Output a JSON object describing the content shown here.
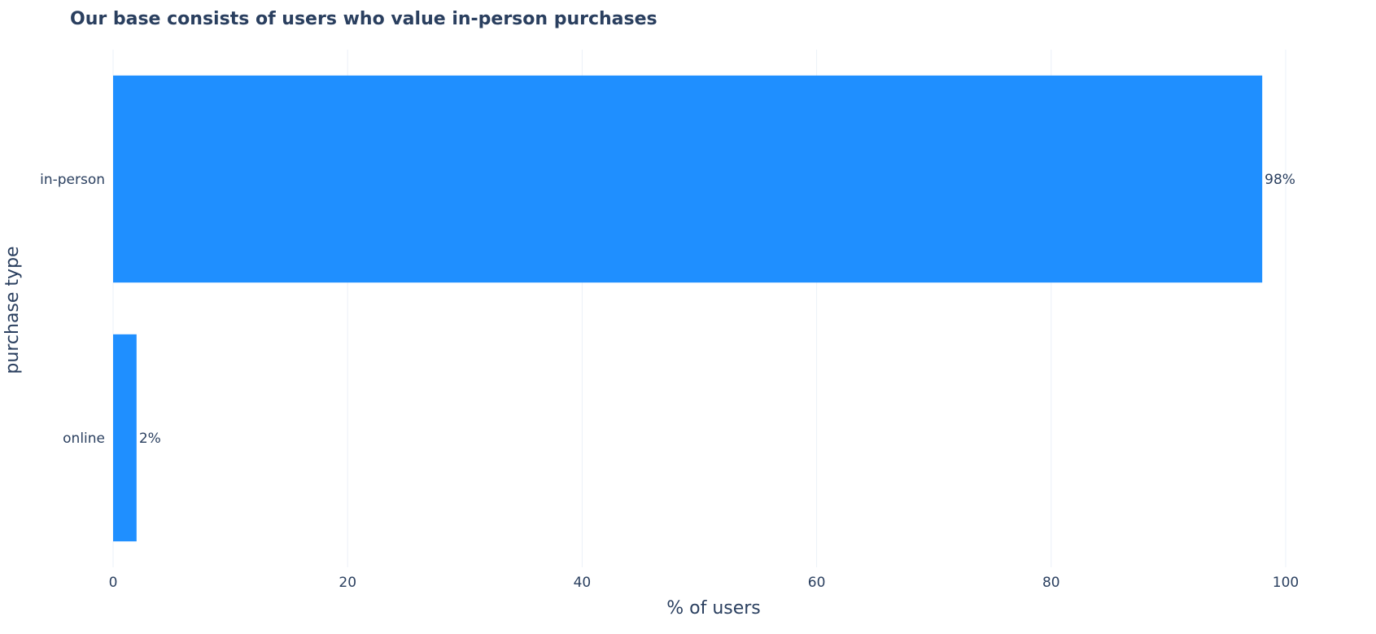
{
  "chart_data": {
    "type": "bar",
    "orientation": "horizontal",
    "title": "Our base consists of users who value in-person purchases",
    "xlabel": "% of users",
    "ylabel": "purchase type",
    "categories": [
      "in-person",
      "online"
    ],
    "values": [
      98,
      2
    ],
    "value_labels": [
      "98%",
      "2%"
    ],
    "xlim": [
      0,
      100
    ],
    "xticks": [
      0,
      20,
      40,
      60,
      80,
      100
    ],
    "grid": true,
    "legend": "none",
    "bar_color": "#1f8fff"
  }
}
